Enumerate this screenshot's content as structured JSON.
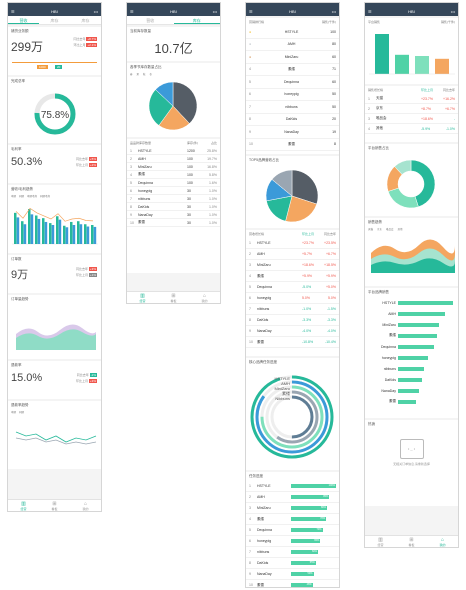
{
  "app": {
    "carrier": "Sketch",
    "time": "9:41 AM",
    "battery": "100%",
    "nav_title": "HBI",
    "menu_icon": "menu-icon",
    "more_icon": "more-icon"
  },
  "segments": [
    "营收",
    "库存",
    "库存"
  ],
  "tabbar": [
    {
      "label": "经营",
      "icon": "bar-chart-icon"
    },
    {
      "label": "看板",
      "icon": "grid-icon"
    },
    {
      "label": "我的",
      "icon": "home-icon"
    }
  ],
  "screen1": {
    "sales": {
      "label": "铺货业务额",
      "value": "299万",
      "yoy_label": "同比去年",
      "yoy": "+8.7%",
      "mom_label": "环比上月",
      "mom": "+2.1%",
      "tooltip1": "1000",
      "tooltip2": "20"
    },
    "rate": {
      "label": "完成总率",
      "value": "75.8%",
      "fraction": 0.758
    },
    "gross": {
      "label": "毛利率",
      "value": "50.3%",
      "yoy_label": "同比去年",
      "yoy": "+5%",
      "mom_label": "环比上月",
      "mom": "+2%"
    },
    "trend_title": "营收/毛利趋势",
    "legend": [
      "本期",
      "同期",
      "本期毛利",
      "同期毛利"
    ],
    "bars_a": [
      82,
      60,
      92,
      75,
      68,
      55,
      73,
      48,
      58,
      60,
      52,
      50
    ],
    "bars_b": [
      70,
      52,
      78,
      66,
      58,
      50,
      64,
      44,
      50,
      52,
      46,
      45
    ],
    "orders": {
      "label": "订单数",
      "value": "9万",
      "yoy_label": "同比去年",
      "yoy": "+3%",
      "mom_label": "环比上月",
      "mom": "+1%"
    },
    "order_trend": "订单量趋势",
    "return": {
      "label": "退款率",
      "value": "15.0%",
      "yoy_label": "同比去年",
      "yoy": "-2%",
      "mom_label": "环比上月",
      "mom": "+3%"
    },
    "return_trend": "退款率趋势",
    "line_legend": [
      "本期",
      "同期"
    ]
  },
  "screen2": {
    "inv": {
      "label": "当前库存数量",
      "value": "10.7亿"
    },
    "pie_title": "各季节库存数量占比",
    "pie_legend": [
      "春",
      "夏",
      "秋",
      "冬"
    ],
    "pie": [
      {
        "v": 38,
        "c": "#555d66"
      },
      {
        "v": 22,
        "c": "#f4a660"
      },
      {
        "v": 27,
        "c": "#26b99a"
      },
      {
        "v": 13,
        "c": "#3b9ad9"
      }
    ],
    "table_title": "品品牌库存数量",
    "table_cols": [
      "库存(件)",
      "占比"
    ],
    "rows": [
      [
        "1",
        "HSTYLE",
        "1200",
        "25.8%"
      ],
      [
        "2",
        "AMH",
        "100",
        "19.7%"
      ],
      [
        "3",
        "MiniZaru",
        "100",
        "16.8%"
      ],
      [
        "4",
        "素缕",
        "100",
        "5.8%"
      ],
      [
        "5",
        "Dequinna",
        "100",
        "1.6%"
      ],
      [
        "6",
        "honeypig",
        "30",
        "1.0%"
      ],
      [
        "7",
        "nibbuns",
        "30",
        "1.0%"
      ],
      [
        "8",
        "DaKids",
        "30",
        "1.0%"
      ],
      [
        "9",
        "NanaDay",
        "30",
        "1.0%"
      ],
      [
        "10",
        "素雪",
        "30",
        "1.0%"
      ]
    ]
  },
  "screen3": {
    "top_title": "营销排行榜",
    "top_right": "销售(千件)",
    "top_rows": [
      [
        "1",
        "HSTYLE",
        "100"
      ],
      [
        "2",
        "AMH",
        "80"
      ],
      [
        "3",
        "MiniZaru",
        "60"
      ],
      [
        "4",
        "素缕",
        "71"
      ],
      [
        "5",
        "Dequinna",
        "60"
      ],
      [
        "6",
        "honeypig",
        "50"
      ],
      [
        "7",
        "nibbuns",
        "50"
      ],
      [
        "8",
        "DaKids",
        "20"
      ],
      [
        "9",
        "NanaDay",
        "19"
      ],
      [
        "10",
        "素雪",
        "8"
      ]
    ],
    "pie_title": "TOP5品牌营收占比",
    "pie": [
      {
        "v": 30,
        "c": "#555d66"
      },
      {
        "v": 24,
        "c": "#f4a660"
      },
      {
        "v": 18,
        "c": "#26b99a"
      },
      {
        "v": 14,
        "c": "#3b9ad9"
      },
      {
        "v": 14,
        "c": "#9aa6b2"
      }
    ],
    "growth_title": "营收增长榜",
    "growth_cols": [
      "环比上月",
      "同比去年"
    ],
    "growth_rows": [
      [
        "1",
        "HSTYLE",
        "+23.7%",
        "+23.5%"
      ],
      [
        "2",
        "AMH",
        "+5.7%",
        "+6.7%"
      ],
      [
        "3",
        "MiniZaru",
        "+18.6%",
        "+18.5%"
      ],
      [
        "4",
        "素缕",
        "+5.9%",
        "+5.9%"
      ],
      [
        "5",
        "Dequinna",
        "-5.0%",
        "+5.0%"
      ],
      [
        "6",
        "honeypig",
        "5.0%",
        "5.0%"
      ],
      [
        "7",
        "nibbuns",
        "-1.0%",
        "-1.5%"
      ],
      [
        "8",
        "DaKids",
        "-3.3%",
        "-3.3%"
      ],
      [
        "9",
        "NanaDay",
        "-4.0%",
        "-4.0%"
      ],
      [
        "10",
        "素雪",
        "-10.8%",
        "-10.4%"
      ]
    ],
    "ring_title": "核心品牌任务进度",
    "ring_labels": [
      "HSTYLE",
      "AMH",
      "MiniZaru",
      "素缕",
      "Nibbuns"
    ],
    "rank_title": "任务进度",
    "rank_rows": [
      [
        "1",
        "HSTYLE",
        "100%"
      ],
      [
        "2",
        "AMH",
        "85%"
      ],
      [
        "3",
        "MiniZaru",
        "80%"
      ],
      [
        "4",
        "素缕",
        "78%"
      ],
      [
        "5",
        "Dequinna",
        "70%"
      ],
      [
        "6",
        "honeypig",
        "65%"
      ],
      [
        "7",
        "nibbuns",
        "60%"
      ],
      [
        "8",
        "DaKids",
        "55%"
      ],
      [
        "9",
        "NanaDay",
        "50%"
      ],
      [
        "10",
        "素雪",
        "48%"
      ]
    ]
  },
  "screen4": {
    "plat_title": "平台销售",
    "plat_right": "销售(千件)",
    "plat_bars": [
      100,
      48,
      45,
      38
    ],
    "plat_bar_colors": [
      "#26b99a",
      "#4fd2a6",
      "#7ee0bc",
      "#f4a660"
    ],
    "growth_title": "销售增长榜",
    "growth_cols": [
      "环比上月",
      "同比去年"
    ],
    "growth_rows": [
      [
        "1",
        "天猫",
        "+23.7%",
        "+16.2%"
      ],
      [
        "2",
        "京东",
        "+8.7%",
        "+6.7%"
      ],
      [
        "3",
        "唯品会",
        "+18.6%",
        "-"
      ],
      [
        "4",
        "其他",
        "-5.9%",
        "-1.0%"
      ]
    ],
    "ring_title": "平台销售占比",
    "ring": [
      {
        "v": 45,
        "c": "#26b99a"
      },
      {
        "v": 25,
        "c": "#7ee0bc"
      },
      {
        "v": 18,
        "c": "#f4a660"
      },
      {
        "v": 12,
        "c": "#a6e3cf"
      }
    ],
    "area_title": "销售趋势",
    "area_legend": [
      "天猫",
      "京东",
      "唯品会",
      "其他"
    ],
    "hbar_title": "平台品牌销售",
    "hbar_rows": [
      [
        "HSTYLE",
        100
      ],
      [
        "AMH",
        85
      ],
      [
        "MiniZaru",
        75
      ],
      [
        "素缕",
        70
      ],
      [
        "Dequinna",
        65
      ],
      [
        "honeypig",
        55
      ],
      [
        "nibbuns",
        48
      ],
      [
        "DaKids",
        44
      ],
      [
        "NanaDay",
        38
      ],
      [
        "素雪",
        32
      ]
    ],
    "empty_title": "热销",
    "empty_text": "无相关订单信息,请重新选择"
  }
}
